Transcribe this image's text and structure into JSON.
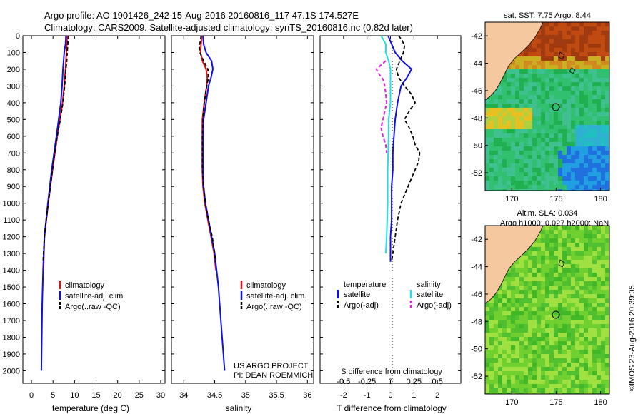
{
  "header": {
    "line1": "Argo profile: AO 1901426_242 15-Aug-2016 20160816_117 47.1S 174.527E",
    "line2": "Climatology: CARS2009. Satellite-adjusted climatology: synTS_20160816.nc (0.82d later)"
  },
  "credits": {
    "project": "US ARGO PROJECT",
    "pi": "PI: DEAN ROEMMICH",
    "stamp": "©IMOS 23-Aug-2016 20:39:05"
  },
  "colors": {
    "climatology": "#e01010",
    "satellite": "#1010e0",
    "argo": "#000000",
    "salinity_satellite": "#20e0e0",
    "salinity_argo": "#e020e0",
    "land": "#f5c8a0"
  },
  "chart_data": [
    {
      "type": "line",
      "panel": "temperature",
      "xlabel": "temperature (deg C)",
      "xticks": [
        "0",
        "5",
        "10",
        "15",
        "20",
        "25",
        "30"
      ],
      "xlim": [
        -2,
        31
      ],
      "ylim": [
        0,
        2075
      ],
      "yticks": [
        "0",
        "100",
        "200",
        "300",
        "400",
        "500",
        "600",
        "700",
        "800",
        "900",
        "1000",
        "1100",
        "1200",
        "1300",
        "1400",
        "1500",
        "1600",
        "1700",
        "1800",
        "1900",
        "2000"
      ],
      "legend": [
        "climatology",
        "satellite-adj. clim.",
        "Argo(..raw -QC)"
      ],
      "series": [
        {
          "name": "climatology",
          "depth": [
            0,
            50,
            100,
            200,
            300,
            400,
            500,
            600,
            800,
            1000,
            1200,
            1300,
            1400
          ],
          "values": [
            8.3,
            8.2,
            8.1,
            7.9,
            7.6,
            7.2,
            6.6,
            6.0,
            4.9,
            3.9,
            3.0,
            2.9,
            2.8
          ]
        },
        {
          "name": "satellite-adj. clim.",
          "depth": [
            0,
            50,
            100,
            200,
            300,
            400,
            500,
            600,
            800,
            1000,
            1200,
            1400,
            1600,
            1800,
            2000
          ],
          "values": [
            8.0,
            7.9,
            7.6,
            7.3,
            7.1,
            6.8,
            6.3,
            5.8,
            4.7,
            3.8,
            3.0,
            2.7,
            2.5,
            2.4,
            2.3
          ]
        },
        {
          "name": "Argo(..raw -QC)",
          "depth": [
            0,
            30,
            60,
            100,
            150,
            200,
            300,
            400,
            500,
            600,
            700,
            800,
            900,
            1000,
            1100,
            1200,
            1300,
            1350
          ],
          "values": [
            8.6,
            8.5,
            8.4,
            8.3,
            8.2,
            8.0,
            7.7,
            7.3,
            6.7,
            6.0,
            5.4,
            4.9,
            4.4,
            3.9,
            3.4,
            3.0,
            2.8,
            2.7
          ]
        }
      ]
    },
    {
      "type": "line",
      "panel": "salinity",
      "xlabel": "salinity",
      "xticks": [
        "34",
        "34.5",
        "35",
        "35.5",
        "36"
      ],
      "xlim": [
        33.8,
        36.1
      ],
      "ylim": [
        0,
        2075
      ],
      "legend": [
        "climatology",
        "satellite-adj. clim.",
        "Argo(..raw -QC)"
      ],
      "series": [
        {
          "name": "climatology",
          "depth": [
            0,
            50,
            100,
            150,
            200,
            250,
            300,
            400,
            500,
            600,
            700,
            800,
            900,
            1000,
            1100,
            1200,
            1300,
            1400
          ],
          "values": [
            34.29,
            34.28,
            34.27,
            34.3,
            34.36,
            34.38,
            34.37,
            34.33,
            34.3,
            34.3,
            34.3,
            34.3,
            34.31,
            34.34,
            34.39,
            34.44,
            34.49,
            34.52
          ]
        },
        {
          "name": "satellite-adj. clim.",
          "depth": [
            0,
            50,
            100,
            150,
            200,
            250,
            300,
            400,
            500,
            600,
            700,
            800,
            900,
            1000,
            1100,
            1200,
            1300,
            1400,
            1500,
            1600,
            1700,
            1800,
            1900,
            2000
          ],
          "values": [
            34.31,
            34.32,
            34.36,
            34.45,
            34.47,
            34.44,
            34.4,
            34.36,
            34.32,
            34.31,
            34.31,
            34.31,
            34.32,
            34.35,
            34.4,
            34.45,
            34.5,
            34.53,
            34.56,
            34.58,
            34.6,
            34.62,
            34.64,
            34.66
          ]
        },
        {
          "name": "Argo(..raw -QC)",
          "depth": [
            0,
            30,
            60,
            100,
            150,
            200,
            250,
            300,
            400,
            500,
            600,
            700,
            800,
            900,
            1000,
            1100,
            1200,
            1300,
            1350
          ],
          "values": [
            34.28,
            34.27,
            34.25,
            34.26,
            34.32,
            34.39,
            34.4,
            34.37,
            34.33,
            34.31,
            34.3,
            34.3,
            34.3,
            34.32,
            34.35,
            34.4,
            34.46,
            34.5,
            34.51
          ]
        }
      ]
    },
    {
      "type": "line",
      "panel": "difference",
      "xlabel": "T difference from climatology",
      "x2label": "S difference from climatology",
      "xticks": [
        "-2",
        "-1",
        "0",
        "1",
        "2"
      ],
      "x2ticks": [
        "-0.5",
        "-0.25",
        "0",
        "0.25",
        "0.5"
      ],
      "xlim": [
        -3,
        3
      ],
      "ylim": [
        0,
        2075
      ],
      "legend_headers": [
        "temperature",
        "salinity"
      ],
      "legend": [
        "satellite",
        "Argo(-adj)",
        "satellite",
        "Argo(-adj)"
      ],
      "series": [
        {
          "name": "satellite",
          "quantity": "T",
          "depth": [
            0,
            50,
            100,
            150,
            200,
            250,
            300,
            400,
            500,
            600,
            700,
            800,
            900,
            1000,
            1100,
            1200,
            1300,
            1350
          ],
          "values": [
            -0.1,
            0.05,
            0.2,
            0.5,
            0.9,
            0.7,
            0.45,
            0.3,
            0.2,
            0.15,
            0.1,
            0.1,
            0.05,
            0.05,
            0.05,
            0.0,
            0.0,
            0.0
          ]
        },
        {
          "name": "Argo(-adj)",
          "quantity": "T",
          "depth": [
            0,
            30,
            60,
            100,
            150,
            200,
            250,
            300,
            350,
            400,
            450,
            500,
            550,
            600,
            650,
            700,
            750,
            800,
            850,
            900,
            950,
            1000,
            1100,
            1200,
            1300,
            1350
          ],
          "values": [
            0.35,
            0.5,
            0.6,
            0.55,
            0.4,
            0.25,
            0.35,
            0.6,
            0.9,
            1.05,
            0.8,
            0.6,
            0.8,
            0.95,
            1.05,
            1.25,
            1.2,
            1.05,
            0.9,
            0.75,
            0.6,
            0.45,
            0.3,
            0.2,
            0.1,
            0.05
          ]
        },
        {
          "name": "satellite",
          "quantity": "S",
          "depth": [
            0,
            50,
            100,
            150,
            200,
            300,
            400,
            500,
            600,
            800,
            1000,
            1200,
            1300
          ],
          "values": [
            -0.1,
            -0.05,
            -0.05,
            -0.02,
            0.0,
            0.0,
            0.0,
            -0.02,
            -0.02,
            -0.03,
            -0.03,
            -0.04,
            -0.05
          ]
        },
        {
          "name": "Argo(-adj)",
          "quantity": "S",
          "depth": [
            150,
            200,
            230,
            260,
            300,
            400,
            500,
            550,
            600,
            650,
            700
          ],
          "values": [
            -0.05,
            -0.15,
            -0.12,
            -0.08,
            -0.06,
            -0.04,
            -0.08,
            -0.1,
            -0.08,
            -0.05,
            -0.04
          ]
        }
      ]
    },
    {
      "type": "heatmap",
      "panel": "sst-map",
      "title": "sat. SST: 7.75 Argo: 8.44",
      "xticks": [
        "170",
        "175",
        "180"
      ],
      "yticks": [
        "-42",
        "-44",
        "-46",
        "-48",
        "-50",
        "-52"
      ],
      "xlim": [
        167,
        181
      ],
      "ylim": [
        -53.3,
        -41
      ],
      "marker": {
        "lon": 174.527,
        "lat": -47.1
      }
    },
    {
      "type": "heatmap",
      "panel": "sla-map",
      "title": "Altim. SLA: 0.034",
      "subtitle": "Argo h1000: 0.027 h2000: NaN",
      "xticks": [
        "170",
        "175",
        "180"
      ],
      "yticks": [
        "-42",
        "-44",
        "-46",
        "-48",
        "-50",
        "-52"
      ],
      "xlim": [
        167,
        181
      ],
      "ylim": [
        -53.3,
        -41
      ],
      "marker": {
        "lon": 174.527,
        "lat": -47.1
      }
    }
  ]
}
